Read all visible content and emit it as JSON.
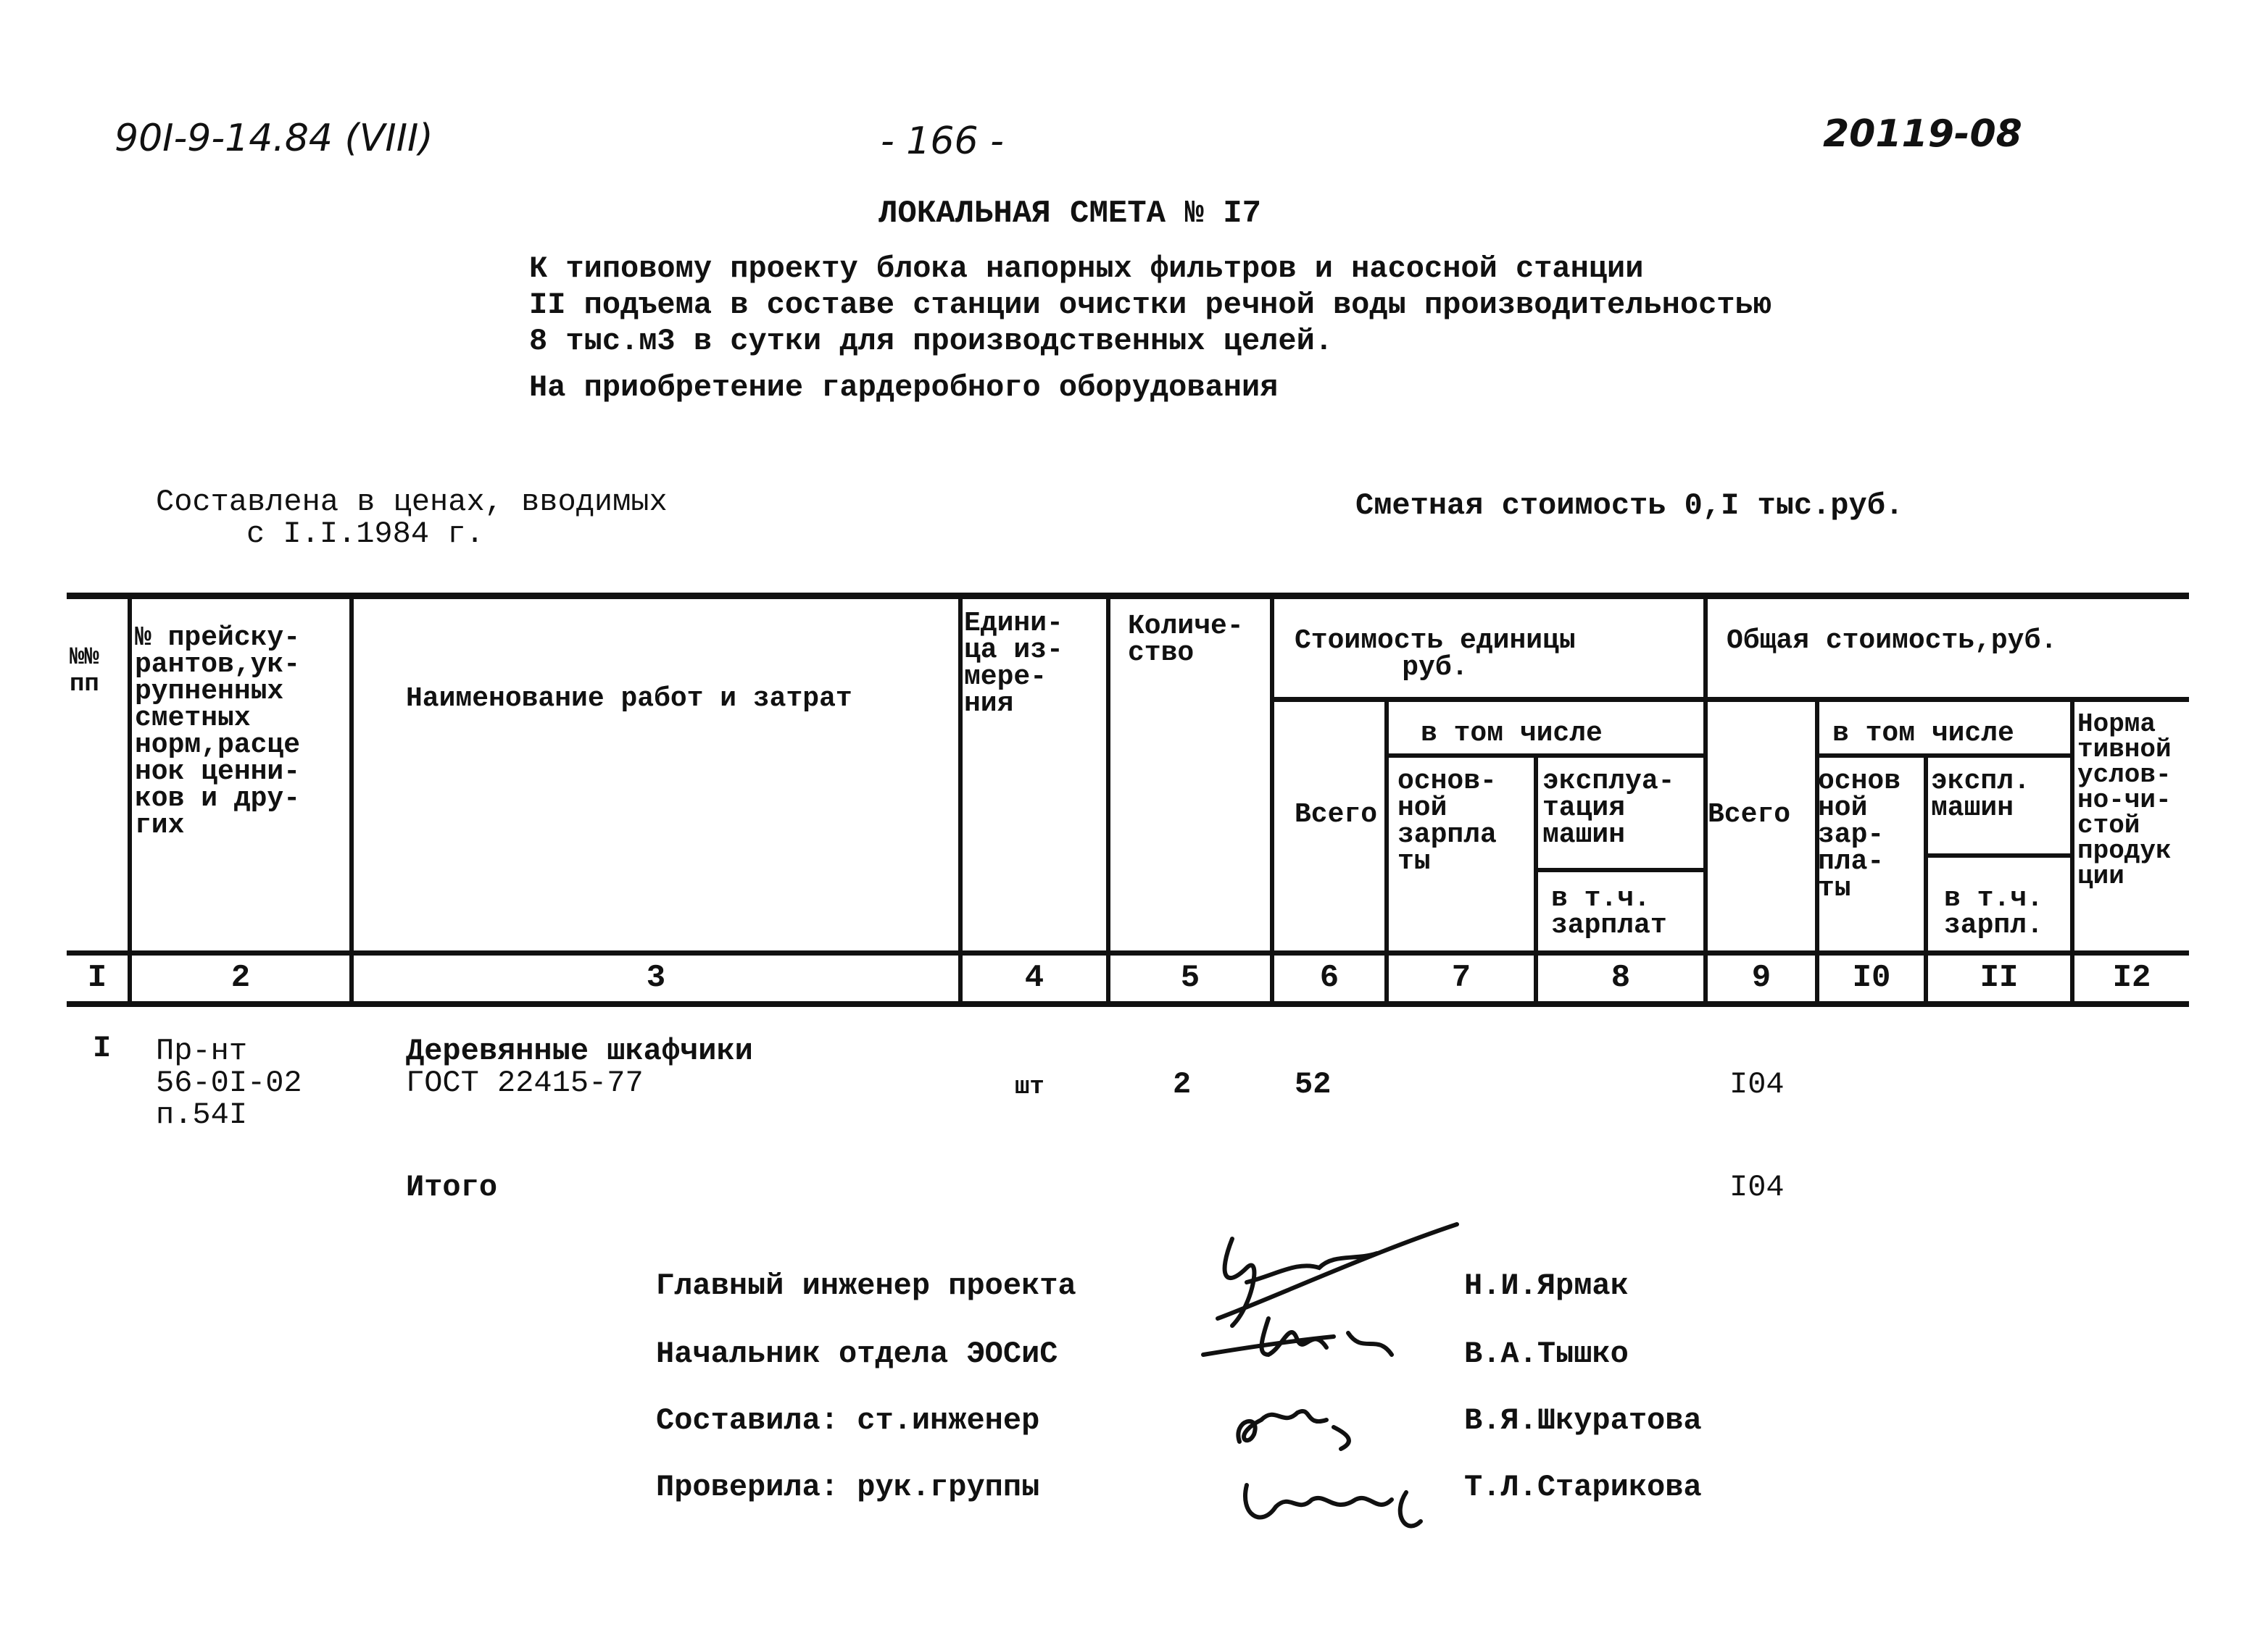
{
  "header": {
    "doc_code": "90I-9-14.84 (VIII)",
    "page_number": "- 166 -",
    "archive_code": "20119-08"
  },
  "title": "ЛОКАЛЬНАЯ СМЕТА № I7",
  "description_lines": [
    "К типовому проекту блока напорных фильтров и насосной станции",
    "II подъема в составе станции очистки речной воды производительностью",
    "8 тыс.м3 в сутки для производственных целей."
  ],
  "purpose": "На приобретение гардеробного оборудования",
  "prices_note": [
    "Составлена в ценах, вводимых",
    "с I.I.1984 г."
  ],
  "estimated_cost": "Сметная стоимость 0,I тыс.руб.",
  "table": {
    "headers": {
      "c1": "№№\nпп",
      "c2": "№ прейску-\nрантов,ук-\nрупненных\nсметных\nнорм,расце\nнок ценни-\nков и дру-\nгих",
      "c3": "Наименование работ и затрат",
      "c4": "Едини-\nца из-\nмере-\nния",
      "c5": "Количе-\nство",
      "unit_cost": "Стоимость единицы\nруб.",
      "total_cost": "Общая стоимость,руб.",
      "incl1": "в том числе",
      "incl2": "в том числе",
      "c6": "Всего",
      "c7": "основ-\nной\nзарпла\nты",
      "c8": "эксплуа-\nтация\nмашин",
      "c8b": "в т.ч.\nзарплат",
      "c9": "Всего",
      "c10": "основ\nной\nзар-\nпла-\nты",
      "c11": "экспл.\nмашин",
      "c11b": "в т.ч.\nзарпл.",
      "c12": "Норма\nтивной\nуслов-\nно-чи-\nстой\nпродук\nции"
    },
    "column_numbers": [
      "I",
      "2",
      "3",
      "4",
      "5",
      "6",
      "7",
      "8",
      "9",
      "I0",
      "II",
      "I2"
    ],
    "rows": [
      {
        "no": "I",
        "code": [
          "Пр-нт",
          "56-0I-02",
          "п.54I"
        ],
        "name": [
          "Деревянные шкафчики",
          "ГОСТ 22415-77"
        ],
        "unit": "шт",
        "qty": "2",
        "unit_total": "52",
        "total": "I04"
      }
    ],
    "total_label": "Итого",
    "total_value": "I04"
  },
  "signatures": [
    {
      "role": "Главный инженер проекта",
      "name": "Н.И.Ярмак"
    },
    {
      "role": "Начальник отдела  ЭОСиС",
      "name": "В.А.Тышко"
    },
    {
      "role": "Составила: ст.инженер",
      "name": "В.Я.Шкуратова"
    },
    {
      "role": "Проверила: рук.группы",
      "name": "Т.Л.Старикова"
    }
  ]
}
